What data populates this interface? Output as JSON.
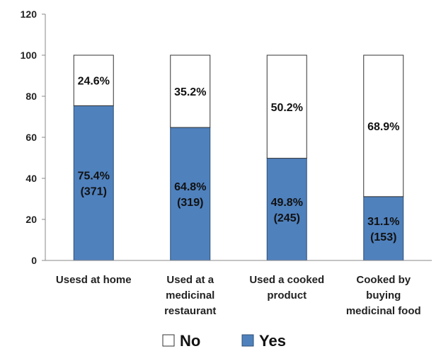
{
  "chart_data": {
    "type": "bar",
    "stacked": true,
    "categories": [
      [
        "Usesd at home"
      ],
      [
        "Used at a",
        "medicinal",
        "restaurant"
      ],
      [
        "Used a cooked",
        "product"
      ],
      [
        "Cooked by",
        "buying",
        "medicinal food"
      ]
    ],
    "series": [
      {
        "name": "Yes",
        "color": "#4f81bd",
        "values": [
          75.4,
          64.8,
          49.8,
          31.1
        ],
        "labels": [
          [
            "75.4%",
            "(371)"
          ],
          [
            "64.8%",
            "(319)"
          ],
          [
            "49.8%",
            "(245)"
          ],
          [
            "31.1%",
            "(153)"
          ]
        ]
      },
      {
        "name": "No",
        "color": "#ffffff",
        "values": [
          24.6,
          35.2,
          50.2,
          68.9
        ],
        "labels": [
          [
            "24.6%"
          ],
          [
            "35.2%"
          ],
          [
            "50.2%"
          ],
          [
            "68.9%"
          ]
        ]
      }
    ],
    "ylim": [
      0,
      120
    ],
    "yticks": [
      0,
      20,
      40,
      60,
      80,
      100,
      120
    ],
    "grid": false,
    "legend_position": "bottom",
    "legend_order": [
      "No",
      "Yes"
    ]
  }
}
